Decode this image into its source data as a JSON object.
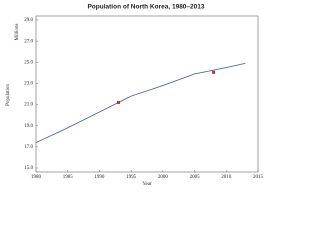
{
  "chart_data": {
    "type": "line",
    "title": "Population of North Korea, 1980–2013",
    "ylabel": "Population",
    "yunit": "Millions",
    "xlabel": "Year",
    "x": [
      1980,
      1985,
      1990,
      1995,
      2000,
      2005,
      2010,
      2013
    ],
    "series": [
      {
        "color": "#4a6fa5",
        "values": [
          17.4,
          18.8,
          20.3,
          21.8,
          22.8,
          23.9,
          24.5,
          24.9
        ]
      }
    ],
    "points": {
      "color": "#c0302b",
      "x": [
        1993,
        2008
      ],
      "values": [
        21.2,
        24.05
      ]
    },
    "xlim": [
      1980,
      2015
    ],
    "xticks": [
      1980,
      1985,
      1990,
      1995,
      2000,
      2005,
      2010,
      2015
    ],
    "ylim": [
      15,
      29
    ],
    "yticks": [
      {
        "value": 15,
        "label": "15.0"
      },
      {
        "value": 17,
        "label": "17.0"
      },
      {
        "value": 19,
        "label": "19.0"
      },
      {
        "value": 21,
        "label": "21.0"
      },
      {
        "value": 23,
        "label": "23.0"
      },
      {
        "value": 25,
        "label": "25.0"
      },
      {
        "value": 27,
        "label": "27.0"
      },
      {
        "value": 29,
        "label": "29.0"
      }
    ]
  }
}
